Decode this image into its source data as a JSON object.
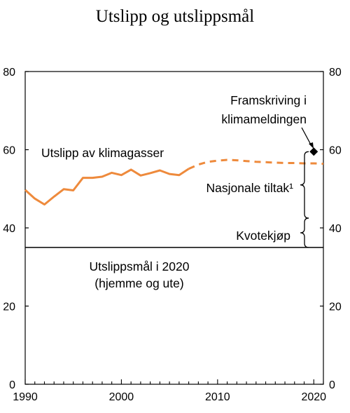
{
  "chart_data": {
    "type": "line",
    "title": "Utslipp og utslippsmål",
    "xlim": [
      1990,
      2021
    ],
    "ylim": [
      0,
      80
    ],
    "x_ticks": [
      1990,
      2000,
      2010,
      2020
    ],
    "y_ticks": [
      0,
      20,
      40,
      60,
      80
    ],
    "grid": false,
    "series": [
      {
        "name": "Utslipp av klimagasser",
        "style": "solid",
        "color": "#ee8a3c",
        "x": [
          1990,
          1991,
          1992,
          1993,
          1994,
          1995,
          1996,
          1997,
          1998,
          1999,
          2000,
          2001,
          2002,
          2003,
          2004,
          2005,
          2006,
          2007
        ],
        "y": [
          49.7,
          47.5,
          46.0,
          48.0,
          49.9,
          49.6,
          52.8,
          52.8,
          53.1,
          54.1,
          53.5,
          54.9,
          53.4,
          54.0,
          54.7,
          53.8,
          53.5,
          55.1
        ]
      },
      {
        "name": "",
        "style": "dashed",
        "color": "#ee8a3c",
        "x": [
          2007,
          2008,
          2009,
          2010,
          2011,
          2012,
          2013,
          2014,
          2015,
          2016,
          2017,
          2018,
          2019,
          2020,
          2021
        ],
        "y": [
          55.1,
          56.2,
          56.9,
          57.2,
          57.4,
          57.3,
          57.1,
          56.9,
          56.8,
          56.7,
          56.6,
          56.6,
          56.5,
          56.5,
          56.4
        ]
      }
    ],
    "target_line": {
      "label_line1": "Utslippsmål i 2020",
      "label_line2": "(hjemme og ute)",
      "y": 35
    },
    "projection_point": {
      "label_line1": "Framskriving i",
      "label_line2": "klimameldingen",
      "x": 2020,
      "y": 59.5
    },
    "brackets": [
      {
        "label": "Nasjonale tiltak¹",
        "y_from": 59.5,
        "y_to": 42.5
      },
      {
        "label": "Kvotekjøp",
        "y_from": 42.5,
        "y_to": 35
      }
    ],
    "colors": {
      "series": "#ee8a3c",
      "axes": "#000000"
    }
  }
}
